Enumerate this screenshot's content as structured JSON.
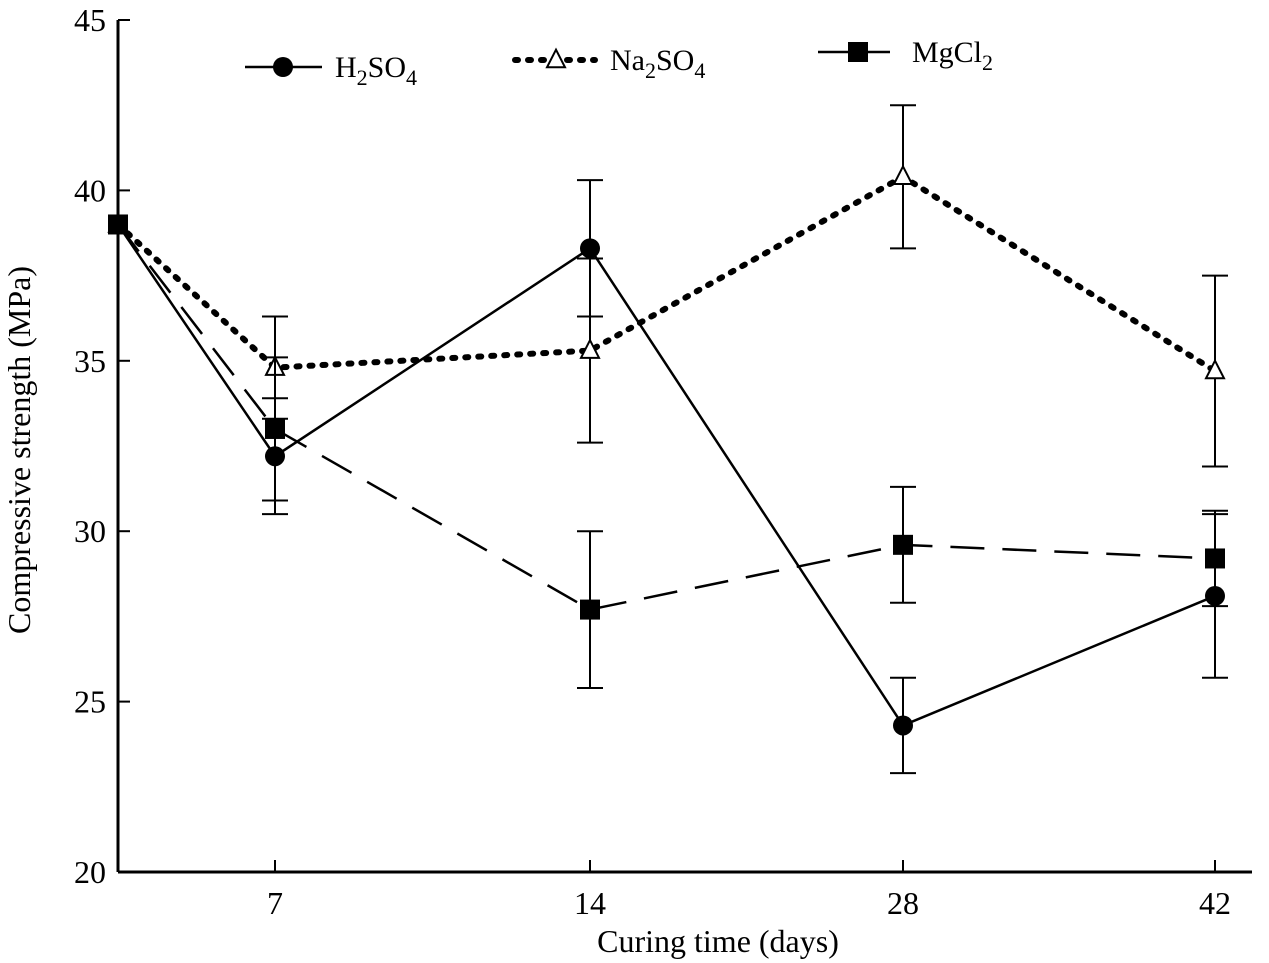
{
  "chart_data": {
    "type": "line",
    "xlabel": "Curing time (days)",
    "ylabel": "Compressive strength (MPa)",
    "ylim": [
      20,
      45
    ],
    "yticks": [
      "20",
      "25",
      "30",
      "35",
      "40",
      "45"
    ],
    "x": [
      0,
      7,
      14,
      28,
      42
    ],
    "xtick_labels": [
      "",
      "7",
      "14",
      "28",
      "42"
    ],
    "grid": false,
    "legend_position": "top",
    "series": [
      {
        "name": "H2SO4",
        "legend": {
          "main": "H",
          "sub1": "2",
          "mid": "SO",
          "sub2": "4"
        },
        "style": "solid",
        "marker": "filled-circle",
        "values": [
          39.0,
          32.2,
          38.3,
          24.3,
          28.1
        ],
        "err": [
          0,
          1.7,
          2.0,
          1.4,
          2.4
        ]
      },
      {
        "name": "Na2SO4",
        "legend": {
          "main": "Na",
          "sub1": "2",
          "mid": "SO",
          "sub2": "4"
        },
        "style": "dotted",
        "marker": "open-triangle",
        "values": [
          39.0,
          34.8,
          35.3,
          40.4,
          34.7
        ],
        "err": [
          0,
          1.5,
          2.7,
          2.1,
          2.8
        ]
      },
      {
        "name": "MgCl2",
        "legend": {
          "main": "MgCl",
          "sub1": "2",
          "mid": "",
          "sub2": ""
        },
        "style": "dashed",
        "marker": "filled-square",
        "values": [
          39.0,
          33.0,
          27.7,
          29.6,
          29.2
        ],
        "err": [
          0,
          2.1,
          2.3,
          1.7,
          1.4
        ]
      }
    ],
    "colors": {
      "line": "#000000",
      "background": "#ffffff"
    }
  }
}
